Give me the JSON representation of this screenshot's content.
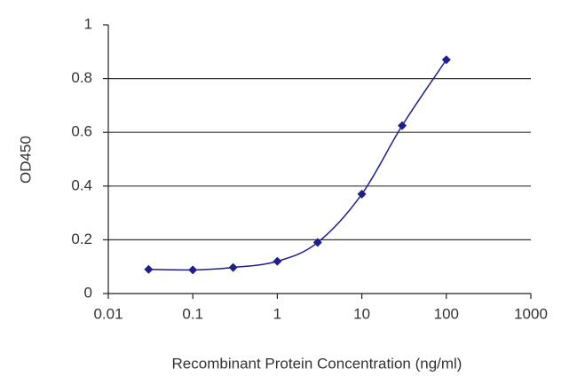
{
  "chart_data": {
    "type": "line",
    "xlabel": "Recombinant Protein Concentration (ng/ml)",
    "ylabel": "OD450",
    "x": [
      0.03,
      0.1,
      0.3,
      1,
      3,
      10,
      30,
      100
    ],
    "series": [
      {
        "color": "#1e1e8c",
        "values": [
          0.09,
          0.088,
          0.097,
          0.12,
          0.19,
          0.37,
          0.625,
          0.87
        ]
      }
    ],
    "xlim": [
      0.01,
      1000
    ],
    "xlog": true,
    "xticks": [
      0.01,
      0.1,
      1,
      10,
      100,
      1000
    ],
    "ylim": [
      0,
      1
    ],
    "yticks": [
      0,
      0.2,
      0.4,
      0.6,
      0.8,
      1
    ],
    "grid": true,
    "marker": "diamond"
  }
}
